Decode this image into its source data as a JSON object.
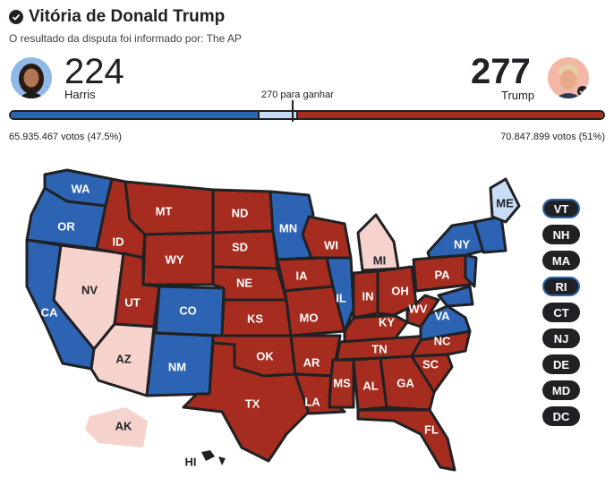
{
  "header": {
    "title": "Vitória de Donald Trump",
    "subtitle": "O resultado da disputa foi informado por: The AP"
  },
  "harris": {
    "score": "224",
    "name": "Harris",
    "votes": "65.935.467 votos (47.5%)",
    "electoral": 224
  },
  "trump": {
    "score": "277",
    "name": "Trump",
    "votes": "70.847.899 votos (51%)",
    "electoral": 277
  },
  "threshold": {
    "label": "270 para ganhar",
    "value": 270,
    "total": 538
  },
  "colors": {
    "dem": "#2c63b3",
    "rep": "#a62c1f",
    "dem_light": "#c8dcf4",
    "pending": "#f6d3cc",
    "outline": "#202124"
  },
  "states": {
    "WA": "WA",
    "OR": "OR",
    "CA": "CA",
    "NV": "NV",
    "ID": "ID",
    "MT": "MT",
    "WY": "WY",
    "UT": "UT",
    "AZ": "AZ",
    "CO": "CO",
    "NM": "NM",
    "ND": "ND",
    "SD": "SD",
    "NE": "NE",
    "KS": "KS",
    "OK": "OK",
    "TX": "TX",
    "MN": "MN",
    "IA": "IA",
    "MO": "MO",
    "AR": "AR",
    "LA": "LA",
    "WI": "WI",
    "IL": "IL",
    "MI": "MI",
    "IN": "IN",
    "OH": "OH",
    "KY": "KY",
    "TN": "TN",
    "MS": "MS",
    "AL": "AL",
    "GA": "GA",
    "FL": "FL",
    "SC": "SC",
    "NC": "NC",
    "VA": "VA",
    "WV": "WV",
    "PA": "PA",
    "NY": "NY",
    "ME": "ME",
    "AK": "AK",
    "HI": "HI"
  },
  "small_states": [
    "VT",
    "NH",
    "MA",
    "RI",
    "CT",
    "NJ",
    "DE",
    "MD",
    "DC"
  ]
}
